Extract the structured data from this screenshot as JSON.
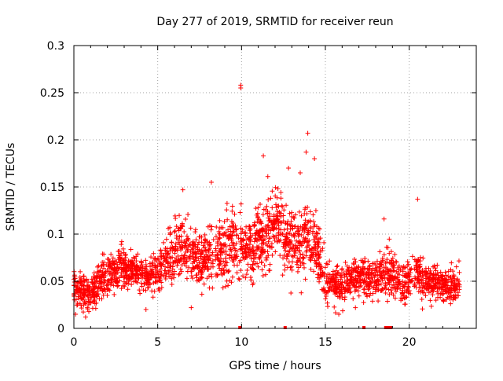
{
  "chart_data": {
    "type": "scatter",
    "title": "Day 277 of 2019, SRMTID for receiver reun",
    "xlabel": "GPS time / hours",
    "ylabel": "SRMTID / TECUs",
    "xlim": [
      0,
      24
    ],
    "ylim": [
      0,
      0.3
    ],
    "xticks": [
      0,
      5,
      10,
      15,
      20
    ],
    "xtick_labels": [
      "0",
      "5",
      "10",
      "15",
      "20"
    ],
    "yticks": [
      0,
      0.05,
      0.1,
      0.15,
      0.2,
      0.25,
      0.3
    ],
    "ytick_labels": [
      "0",
      "0.05",
      "0.1",
      "0.15",
      "0.2",
      "0.25",
      "0.3"
    ],
    "grid": true,
    "marker": "+",
    "series": [
      {
        "name": "SRMTID",
        "color": "#ff0000",
        "envelope_hours": [
          0,
          0.5,
          1,
          1.5,
          2,
          2.5,
          3,
          3.5,
          4,
          4.5,
          5,
          5.5,
          6,
          6.5,
          7,
          7.5,
          8,
          8.5,
          9,
          9.5,
          10,
          10.5,
          11,
          11.5,
          12,
          12.5,
          13,
          13.5,
          14,
          14.5,
          15,
          15.5,
          16,
          16.5,
          17,
          17.5,
          18,
          18.5,
          19,
          19.5,
          20,
          20.5,
          21,
          21.5,
          22,
          22.5,
          23
        ],
        "envelope_mean": [
          0.045,
          0.04,
          0.035,
          0.05,
          0.055,
          0.06,
          0.065,
          0.062,
          0.058,
          0.055,
          0.06,
          0.07,
          0.08,
          0.085,
          0.08,
          0.075,
          0.078,
          0.08,
          0.085,
          0.09,
          0.088,
          0.085,
          0.095,
          0.1,
          0.11,
          0.1,
          0.095,
          0.09,
          0.1,
          0.085,
          0.05,
          0.048,
          0.045,
          0.05,
          0.055,
          0.055,
          0.05,
          0.06,
          0.055,
          0.045,
          0.055,
          0.06,
          0.05,
          0.05,
          0.045,
          0.045,
          0.045
        ],
        "envelope_spread": [
          0.012,
          0.014,
          0.012,
          0.014,
          0.015,
          0.015,
          0.014,
          0.013,
          0.012,
          0.012,
          0.015,
          0.02,
          0.022,
          0.022,
          0.02,
          0.02,
          0.022,
          0.024,
          0.026,
          0.026,
          0.024,
          0.022,
          0.024,
          0.026,
          0.028,
          0.026,
          0.024,
          0.024,
          0.026,
          0.022,
          0.014,
          0.014,
          0.013,
          0.014,
          0.015,
          0.015,
          0.014,
          0.015,
          0.016,
          0.014,
          0.016,
          0.018,
          0.014,
          0.013,
          0.012,
          0.012,
          0.012
        ],
        "notable_points": [
          [
            9.95,
            0.258
          ],
          [
            9.95,
            0.255
          ],
          [
            13.95,
            0.207
          ],
          [
            11.3,
            0.183
          ],
          [
            14.35,
            0.18
          ],
          [
            13.85,
            0.187
          ],
          [
            12.8,
            0.17
          ],
          [
            13.5,
            0.165
          ],
          [
            6.5,
            0.147
          ],
          [
            8.2,
            0.155
          ],
          [
            20.5,
            0.137
          ],
          [
            18.5,
            0.116
          ],
          [
            0.1,
            0.015
          ],
          [
            0.7,
            0.012
          ],
          [
            4.3,
            0.02
          ],
          [
            7,
            0.022
          ],
          [
            15.8,
            0.015
          ]
        ],
        "zero_points_hours": [
          9.9,
          12.6,
          17.3,
          18.6,
          18.75,
          18.9
        ]
      }
    ]
  }
}
